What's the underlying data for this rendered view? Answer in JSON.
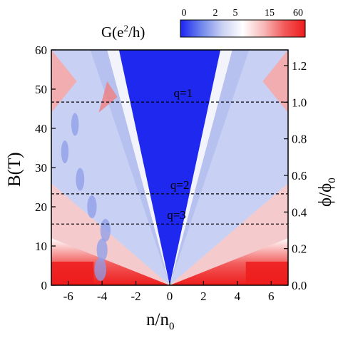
{
  "chart_data": {
    "type": "heatmap",
    "x_label": "n/n",
    "x_label_sub": "0",
    "y_left_label": "B(T)",
    "y_right_label": "ϕ/ϕ",
    "y_right_label_sub": "0",
    "colorbar": {
      "title_prefix": "G(e",
      "title_sup": "2",
      "title_suffix": "/h)",
      "ticks": [
        "0",
        "2",
        "5",
        "15",
        "60"
      ],
      "colors": [
        "#1a23f0",
        "#6f86ec",
        "#c9d0f2",
        "#ffffff",
        "#f8b9b9",
        "#f25a5a",
        "#ee1c1c"
      ]
    },
    "xlim": [
      -7.0,
      7.0
    ],
    "ylim": [
      0,
      60
    ],
    "ylim_right": [
      0,
      1.2857
    ],
    "x_ticks": [
      {
        "v": -6,
        "label": "-6"
      },
      {
        "v": -4,
        "label": "-4"
      },
      {
        "v": -2,
        "label": "-2"
      },
      {
        "v": 0,
        "label": "0"
      },
      {
        "v": 2,
        "label": "2"
      },
      {
        "v": 4,
        "label": "4"
      },
      {
        "v": 6,
        "label": "6"
      }
    ],
    "y_ticks": [
      {
        "v": 0,
        "label": "0"
      },
      {
        "v": 10,
        "label": "10"
      },
      {
        "v": 20,
        "label": "20"
      },
      {
        "v": 30,
        "label": "30"
      },
      {
        "v": 40,
        "label": "40"
      },
      {
        "v": 50,
        "label": "50"
      },
      {
        "v": 60,
        "label": "60"
      }
    ],
    "y_right_ticks": [
      {
        "v": 0.0,
        "label": "0.0"
      },
      {
        "v": 0.2,
        "label": "0.2"
      },
      {
        "v": 0.4,
        "label": "0.4"
      },
      {
        "v": 0.6,
        "label": "0.6"
      },
      {
        "v": 0.8,
        "label": "0.8"
      },
      {
        "v": 1.0,
        "label": "1.0"
      },
      {
        "v": 1.2,
        "label": "1.2"
      }
    ],
    "reference_lines": [
      {
        "B": 46.7,
        "label": "q=1",
        "label_n": 0.8
      },
      {
        "B": 23.3,
        "label": "q=2",
        "label_n": 0.6
      },
      {
        "B": 15.6,
        "label": "q=3",
        "label_n": 0.4
      }
    ],
    "central_blue_fan_edges": {
      "at_B": 60,
      "n_left": -3.0,
      "n_right": 3.0
    },
    "grid": false
  }
}
